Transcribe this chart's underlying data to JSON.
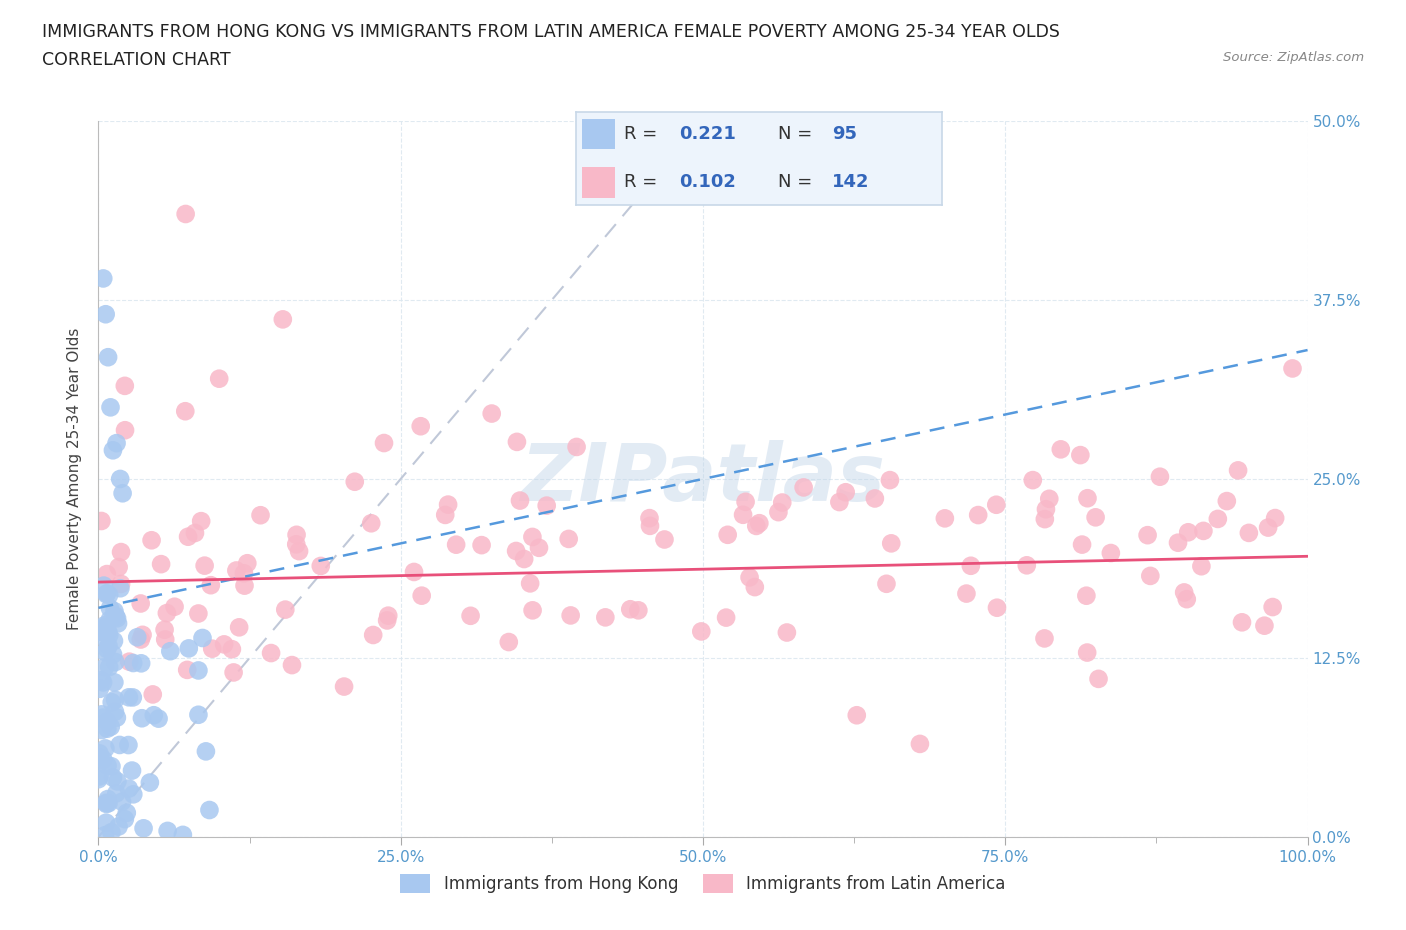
{
  "title_line1": "IMMIGRANTS FROM HONG KONG VS IMMIGRANTS FROM LATIN AMERICA FEMALE POVERTY AMONG 25-34 YEAR OLDS",
  "title_line2": "CORRELATION CHART",
  "source_text": "Source: ZipAtlas.com",
  "ylabel": "Female Poverty Among 25-34 Year Olds",
  "xlim": [
    0,
    100
  ],
  "ylim": [
    0,
    50
  ],
  "hk_color": "#a8c8f0",
  "hk_line_color": "#5599dd",
  "la_color": "#f8b8c8",
  "la_line_color": "#e8507a",
  "diag_color": "#c0c8d8",
  "legend_box_color": "#edf4fc",
  "legend_border_color": "#c8d8e8",
  "hk_R": 0.221,
  "hk_N": 95,
  "la_R": 0.102,
  "la_N": 142,
  "watermark": "ZIPatlas",
  "title_fontsize": 12.5,
  "tick_color": "#5599cc",
  "ylabel_color": "#444444",
  "label_color": "#333333"
}
